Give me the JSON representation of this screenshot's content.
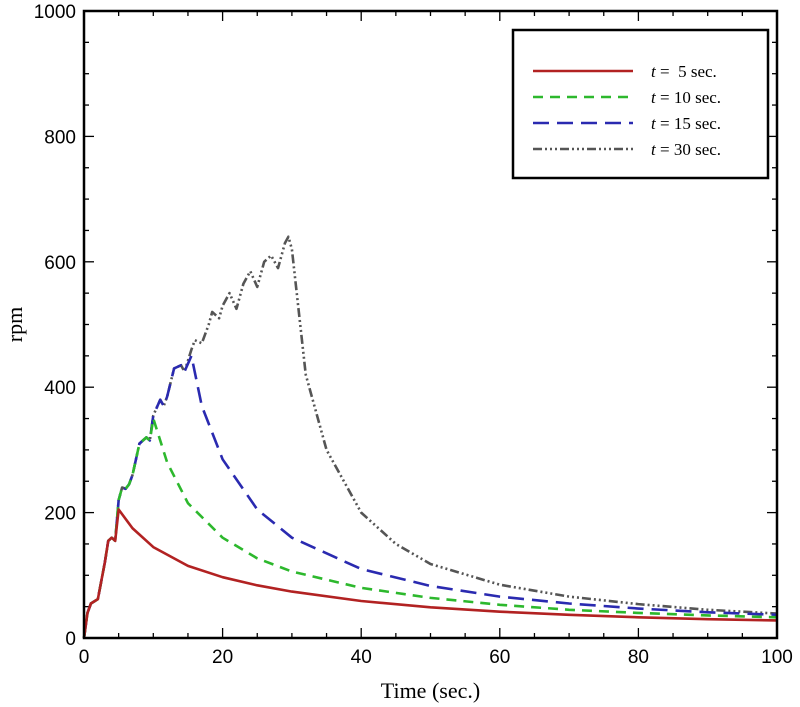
{
  "chart_data": {
    "type": "line",
    "title": "",
    "xlabel": "Time (sec.)",
    "ylabel": "rpm",
    "xlim": [
      0,
      100
    ],
    "ylim": [
      0,
      1000
    ],
    "xticks": [
      "0",
      "20",
      "40",
      "60",
      "80",
      "100"
    ],
    "yticks": [
      "0",
      "200",
      "400",
      "600",
      "800",
      "1000"
    ],
    "grid": false,
    "legend_position": "top-right",
    "series": [
      {
        "name": "t =  5 sec.",
        "legend_var": "t",
        "legend_rest": " =  5 sec.",
        "color": "#b22222",
        "dash": "solid",
        "points": [
          [
            0,
            0
          ],
          [
            0.5,
            40
          ],
          [
            1,
            55
          ],
          [
            2,
            62
          ],
          [
            3,
            120
          ],
          [
            3.5,
            155
          ],
          [
            4,
            160
          ],
          [
            4.5,
            155
          ],
          [
            5,
            205
          ],
          [
            7,
            175
          ],
          [
            10,
            145
          ],
          [
            15,
            115
          ],
          [
            20,
            97
          ],
          [
            25,
            84
          ],
          [
            30,
            74
          ],
          [
            40,
            59
          ],
          [
            50,
            49
          ],
          [
            60,
            42
          ],
          [
            70,
            37
          ],
          [
            80,
            33
          ],
          [
            90,
            30
          ],
          [
            100,
            28
          ]
        ]
      },
      {
        "name": "t = 10 sec.",
        "legend_var": "t",
        "legend_rest": " = 10 sec.",
        "color": "#2db82d",
        "dash": "10,7",
        "points": [
          [
            0,
            0
          ],
          [
            0.5,
            40
          ],
          [
            1,
            55
          ],
          [
            2,
            62
          ],
          [
            3,
            120
          ],
          [
            3.5,
            155
          ],
          [
            4,
            160
          ],
          [
            4.5,
            155
          ],
          [
            5,
            220
          ],
          [
            5.5,
            240
          ],
          [
            6,
            238
          ],
          [
            6.5,
            245
          ],
          [
            7,
            260
          ],
          [
            8,
            310
          ],
          [
            9,
            320
          ],
          [
            9.5,
            315
          ],
          [
            10,
            350
          ],
          [
            12,
            280
          ],
          [
            15,
            215
          ],
          [
            20,
            160
          ],
          [
            25,
            127
          ],
          [
            30,
            106
          ],
          [
            40,
            80
          ],
          [
            50,
            64
          ],
          [
            60,
            53
          ],
          [
            70,
            45
          ],
          [
            80,
            40
          ],
          [
            90,
            36
          ],
          [
            100,
            33
          ]
        ]
      },
      {
        "name": "t = 15 sec.",
        "legend_var": "t",
        "legend_rest": " = 15 sec.",
        "color": "#2a2ab0",
        "dash": "16,8",
        "points": [
          [
            0,
            0
          ],
          [
            0.5,
            40
          ],
          [
            1,
            55
          ],
          [
            2,
            62
          ],
          [
            3,
            120
          ],
          [
            3.5,
            155
          ],
          [
            4,
            160
          ],
          [
            4.5,
            155
          ],
          [
            5,
            220
          ],
          [
            5.5,
            240
          ],
          [
            6,
            238
          ],
          [
            6.5,
            245
          ],
          [
            7,
            260
          ],
          [
            8,
            310
          ],
          [
            9,
            320
          ],
          [
            9.5,
            315
          ],
          [
            10,
            355
          ],
          [
            11,
            380
          ],
          [
            11.5,
            370
          ],
          [
            12,
            385
          ],
          [
            13,
            430
          ],
          [
            14,
            435
          ],
          [
            14.5,
            425
          ],
          [
            15.5,
            450
          ],
          [
            17,
            370
          ],
          [
            20,
            285
          ],
          [
            25,
            205
          ],
          [
            30,
            160
          ],
          [
            40,
            110
          ],
          [
            50,
            83
          ],
          [
            60,
            66
          ],
          [
            70,
            55
          ],
          [
            80,
            47
          ],
          [
            90,
            41
          ],
          [
            100,
            37
          ]
        ]
      },
      {
        "name": "t = 30 sec.",
        "legend_var": "t",
        "legend_rest": " = 30 sec.",
        "color": "#555555",
        "dash": "9,3,2,3,2,3,2,3",
        "points": [
          [
            0,
            0
          ],
          [
            0.5,
            40
          ],
          [
            1,
            55
          ],
          [
            2,
            62
          ],
          [
            3,
            120
          ],
          [
            3.5,
            155
          ],
          [
            4,
            160
          ],
          [
            4.5,
            155
          ],
          [
            5,
            220
          ],
          [
            5.5,
            240
          ],
          [
            6,
            238
          ],
          [
            6.5,
            245
          ],
          [
            7,
            260
          ],
          [
            8,
            310
          ],
          [
            9,
            320
          ],
          [
            9.5,
            315
          ],
          [
            10,
            355
          ],
          [
            11,
            380
          ],
          [
            11.5,
            370
          ],
          [
            12,
            385
          ],
          [
            13,
            430
          ],
          [
            14,
            435
          ],
          [
            14.5,
            425
          ],
          [
            15.5,
            460
          ],
          [
            16,
            475
          ],
          [
            17,
            470
          ],
          [
            18,
            500
          ],
          [
            18.5,
            520
          ],
          [
            19.5,
            510
          ],
          [
            20,
            530
          ],
          [
            21,
            550
          ],
          [
            22,
            525
          ],
          [
            23,
            565
          ],
          [
            24,
            585
          ],
          [
            25,
            560
          ],
          [
            26,
            600
          ],
          [
            27,
            610
          ],
          [
            28,
            590
          ],
          [
            29,
            630
          ],
          [
            29.5,
            640
          ],
          [
            30,
            620
          ],
          [
            32,
            420
          ],
          [
            35,
            300
          ],
          [
            40,
            200
          ],
          [
            45,
            150
          ],
          [
            50,
            118
          ],
          [
            60,
            85
          ],
          [
            70,
            66
          ],
          [
            80,
            54
          ],
          [
            90,
            45
          ],
          [
            100,
            39
          ]
        ]
      }
    ]
  }
}
